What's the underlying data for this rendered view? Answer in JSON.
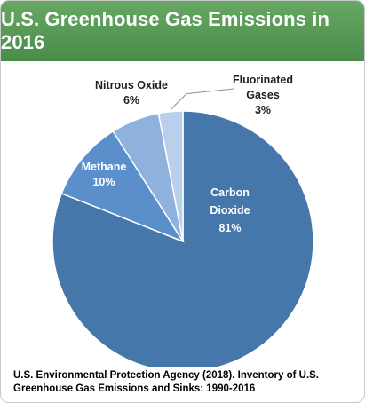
{
  "header": {
    "title": "U.S. Greenhouse Gas Emissions in 2016"
  },
  "colors": {
    "header_bg": "#4f914d",
    "carbon_dioxide": "#4577ab",
    "methane": "#5b8fcc",
    "nitrous_oxide": "#8eb2dd",
    "fluorinated_gases": "#b9cfea",
    "inside_label_text": "#ffffff",
    "outside_label_text": "#1f1f1f"
  },
  "chart_data": {
    "type": "pie",
    "title": "U.S. Greenhouse Gas Emissions in 2016",
    "slices": [
      {
        "name": "Carbon Dioxide",
        "value": 81,
        "label": "81%",
        "label_lines": [
          "Carbon",
          "Dioxide",
          "81%"
        ],
        "color": "#4577ab",
        "label_position": "inside"
      },
      {
        "name": "Methane",
        "value": 10,
        "label": "10%",
        "label_lines": [
          "Methane",
          "10%"
        ],
        "color": "#5b8fcc",
        "label_position": "inside"
      },
      {
        "name": "Nitrous Oxide",
        "value": 6,
        "label": "6%",
        "label_lines": [
          "Nitrous Oxide",
          "6%"
        ],
        "color": "#8eb2dd",
        "label_position": "outside"
      },
      {
        "name": "Fluorinated Gases",
        "value": 3,
        "label": "3%",
        "label_lines": [
          "Fluorinated",
          "Gases",
          "3%"
        ],
        "color": "#b9cfea",
        "label_position": "outside"
      }
    ],
    "direction": "clockwise",
    "start": "top"
  },
  "source": {
    "text": "U.S. Environmental Protection Agency (2018). Inventory of U.S. Greenhouse Gas Emissions and Sinks: 1990-2016"
  }
}
